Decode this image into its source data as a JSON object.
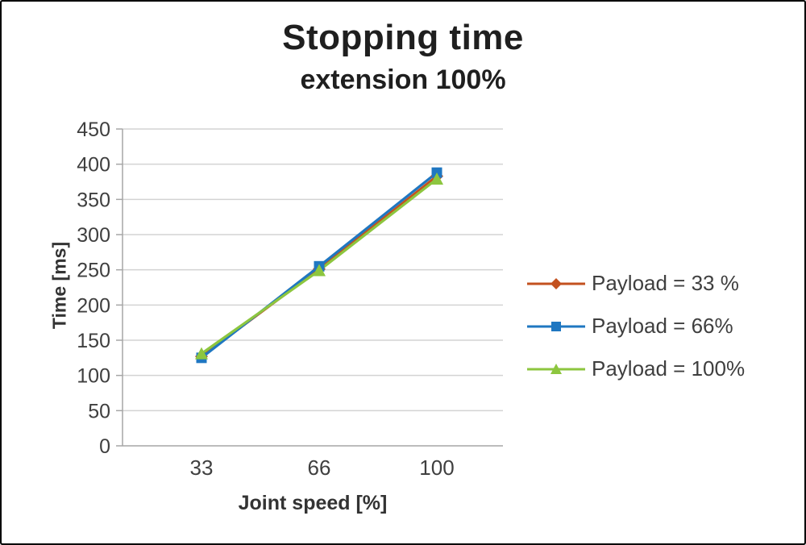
{
  "title": "Stopping time",
  "subtitle": "extension 100%",
  "chart_data": {
    "type": "line",
    "title": "Stopping time",
    "subtitle": "extension 100%",
    "xlabel": "Joint speed [%]",
    "ylabel": "Time [ms]",
    "categories": [
      "33",
      "66",
      "100"
    ],
    "x": [
      33,
      66,
      100
    ],
    "ylim": [
      0,
      450
    ],
    "ytick_step": 50,
    "yticks": [
      "0",
      "50",
      "100",
      "150",
      "200",
      "250",
      "300",
      "350",
      "400",
      "450"
    ],
    "grid": true,
    "legend_position": "right",
    "series": [
      {
        "name": "Payload = 33 %",
        "color": "#c3511f",
        "marker": "diamond",
        "values": [
          127,
          251,
          383
        ]
      },
      {
        "name": "Payload =  66%",
        "color": "#1f77c1",
        "marker": "square",
        "values": [
          125,
          255,
          388
        ]
      },
      {
        "name": "Payload =  100%",
        "color": "#8dc63f",
        "marker": "triangle",
        "values": [
          131,
          249,
          379
        ]
      }
    ],
    "colors": {
      "gridline": "#d3d3d3",
      "axis": "#a6a6a6",
      "text": "#3f3f3f"
    }
  }
}
